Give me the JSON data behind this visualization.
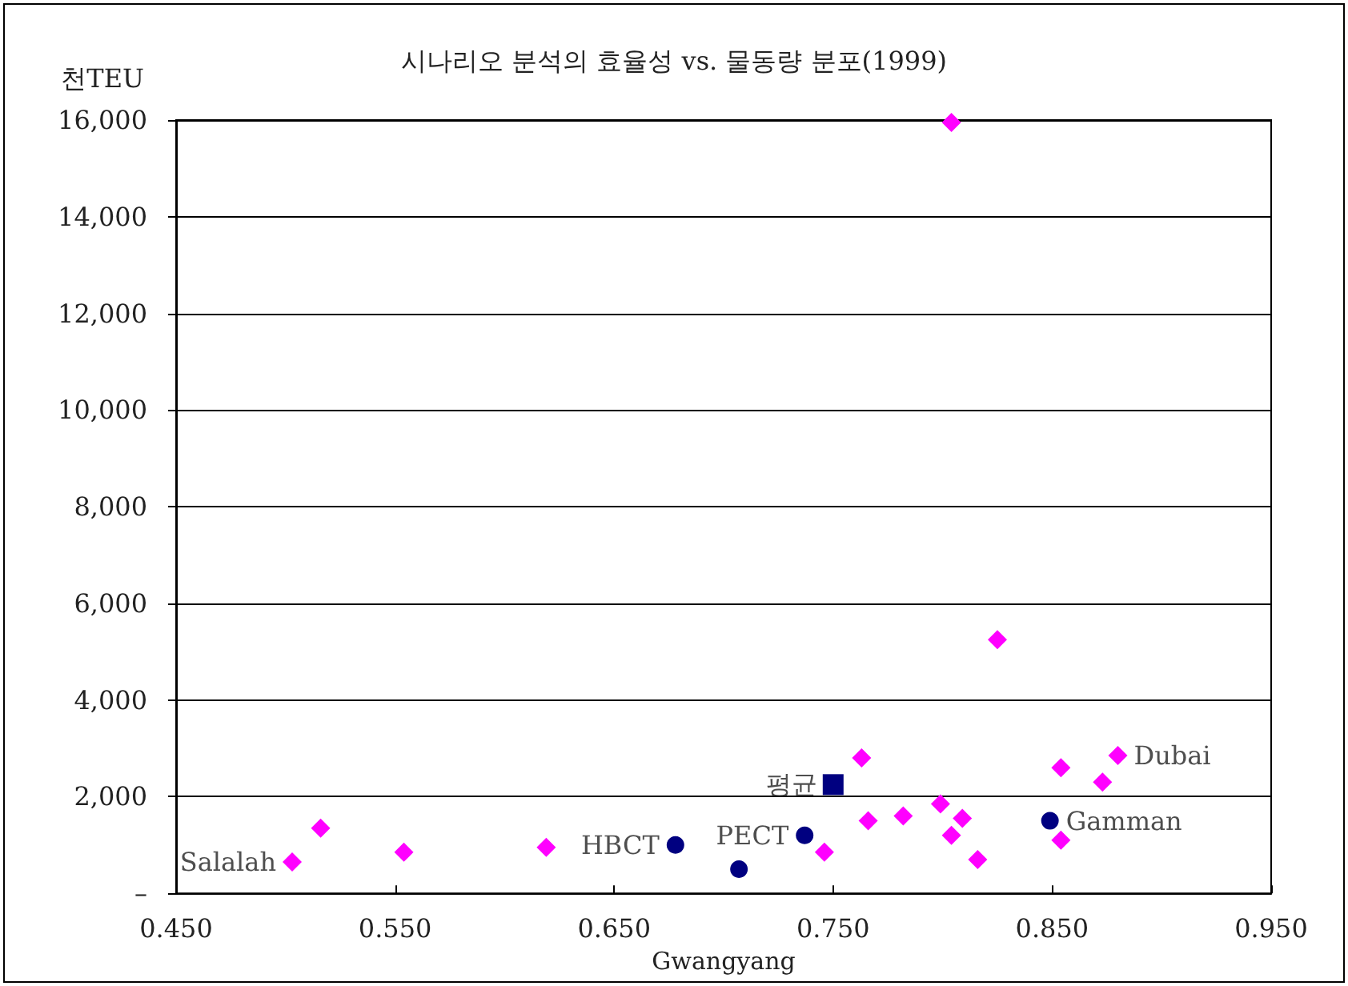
{
  "chart_data": {
    "type": "scatter",
    "title": "시나리오 분석의 효율성 vs. 물동량 분포(1999)",
    "ylabel": "천TEU",
    "xlabel": "Gwangyang",
    "xlim": [
      0.45,
      0.95
    ],
    "xticks": [
      {
        "value": 0.45,
        "label": "0.450"
      },
      {
        "value": 0.55,
        "label": "0.550"
      },
      {
        "value": 0.65,
        "label": "0.650"
      },
      {
        "value": 0.75,
        "label": "0.750"
      },
      {
        "value": 0.85,
        "label": "0.850"
      },
      {
        "value": 0.95,
        "label": "0.950"
      }
    ],
    "ylim": [
      0,
      16000
    ],
    "yticks": [
      {
        "value": 0,
        "label": "–"
      },
      {
        "value": 2000,
        "label": "2,000"
      },
      {
        "value": 4000,
        "label": "4,000"
      },
      {
        "value": 6000,
        "label": "6,000"
      },
      {
        "value": 8000,
        "label": "8,000"
      },
      {
        "value": 10000,
        "label": "10,000"
      },
      {
        "value": 12000,
        "label": "12,000"
      },
      {
        "value": 14000,
        "label": "14,000"
      },
      {
        "value": 16000,
        "label": "16,000"
      }
    ],
    "grid": "y",
    "series": [
      {
        "color": "#ff00ff",
        "marker": "diamond",
        "x": [
          0.503,
          0.516,
          0.554,
          0.619,
          0.746,
          0.763,
          0.766,
          0.782,
          0.799,
          0.809,
          0.804,
          0.816,
          0.854,
          0.854,
          0.873,
          0.88,
          0.804,
          0.825
        ],
        "values": [
          650,
          1350,
          850,
          950,
          850,
          2800,
          1500,
          1600,
          1850,
          1550,
          1200,
          700,
          2600,
          1100,
          2300,
          2850,
          15950,
          5250
        ]
      },
      {
        "color": "#000080",
        "marker": "circle",
        "x": [
          0.678,
          0.707,
          0.737,
          0.849
        ],
        "values": [
          1000,
          500,
          1200,
          1500
        ]
      },
      {
        "color": "#000080",
        "marker": "square",
        "x": [
          0.75
        ],
        "values": [
          2250
        ]
      }
    ],
    "annotations": [
      {
        "text": "Salalah",
        "x": 0.503,
        "y": 650
      },
      {
        "text": "HBCT",
        "x": 0.678,
        "y": 1000
      },
      {
        "text": "PECT",
        "x": 0.737,
        "y": 1200
      },
      {
        "text": "평균",
        "x": 0.75,
        "y": 2250
      },
      {
        "text": "Gamman",
        "x": 0.849,
        "y": 1500
      },
      {
        "text": "Dubai",
        "x": 0.88,
        "y": 2850
      }
    ]
  }
}
